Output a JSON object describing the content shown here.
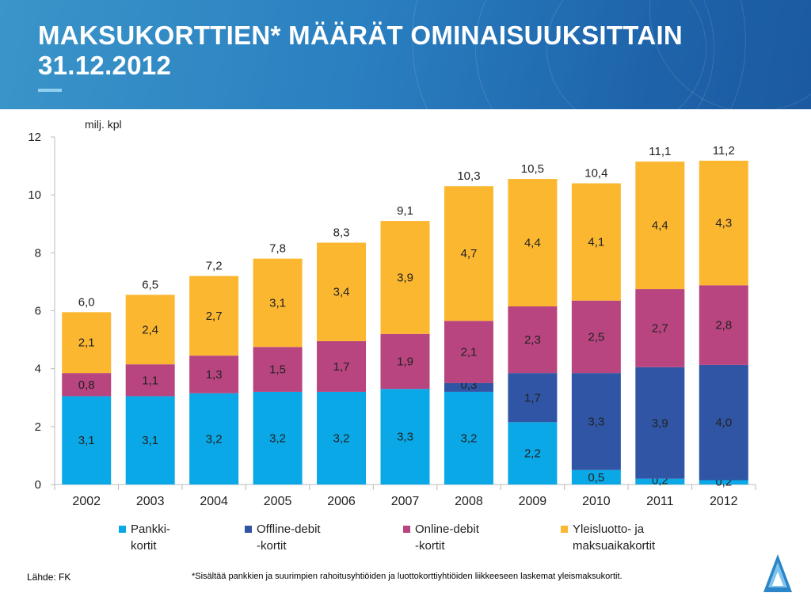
{
  "header": {
    "title_line1": "MAKSUKORTTIEN* MÄÄRÄT OMINAISUUKSITTAIN",
    "title_line2": "31.12.2012"
  },
  "footer": {
    "source": "Lähde: FK",
    "note": "*Sisältää pankkien ja suurimpien rahoitusyhtiöiden ja luottokorttiyhtiöiden liikkeeseen laskemat yleismaksukortit."
  },
  "colors": {
    "pankki": "#0aa8e6",
    "offline": "#2f55a4",
    "online": "#b8457f",
    "yleis": "#fcb731",
    "header": "#2a7fc0"
  },
  "chart_data": {
    "type": "bar",
    "stacked": true,
    "ylabel": "milj. kpl",
    "ylim": [
      0,
      12
    ],
    "yticks": [
      0,
      2,
      4,
      6,
      8,
      10,
      12
    ],
    "grid": false,
    "legend_position": "bottom",
    "categories": [
      "2002",
      "2003",
      "2004",
      "2005",
      "2006",
      "2007",
      "2008",
      "2009",
      "2010",
      "2011",
      "2012"
    ],
    "series": [
      {
        "name_line1": "Pankki-",
        "name_line2": "kortit",
        "name": "Pankki-kortit",
        "color_key": "pankki",
        "heights": [
          3.05,
          3.05,
          3.15,
          3.2,
          3.2,
          3.3,
          3.2,
          2.15,
          0.5,
          0.2,
          0.15
        ],
        "labels": [
          "3,1",
          "3,1",
          "3,2",
          "3,2",
          "3,2",
          "3,3",
          "3,2",
          "2,2",
          "0,5",
          "0,2",
          "0,2"
        ]
      },
      {
        "name_line1": "Offline-debit",
        "name_line2": "-kortit",
        "name": "Offline-debit-kortit",
        "color_key": "offline",
        "heights": [
          0,
          0,
          0,
          0,
          0,
          0,
          0.3,
          1.7,
          3.35,
          3.85,
          3.98
        ],
        "labels": [
          "",
          "",
          "",
          "",
          "",
          "",
          "0,3",
          "1,7",
          "3,3",
          "3,9",
          "4,0"
        ]
      },
      {
        "name_line1": "Online-debit",
        "name_line2": "-kortit",
        "name": "Online-debit-kortit",
        "color_key": "online",
        "heights": [
          0.8,
          1.1,
          1.3,
          1.55,
          1.75,
          1.9,
          2.15,
          2.3,
          2.5,
          2.7,
          2.75
        ],
        "labels": [
          "0,8",
          "1,1",
          "1,3",
          "1,5",
          "1,7",
          "1,9",
          "2,1",
          "2,3",
          "2,5",
          "2,7",
          "2,8"
        ]
      },
      {
        "name_line1": "Yleisluotto- ja",
        "name_line2": "maksuaikakortit",
        "name": "Yleisluotto- ja maksuaikakortit",
        "color_key": "yleis",
        "heights": [
          2.1,
          2.4,
          2.75,
          3.05,
          3.4,
          3.9,
          4.65,
          4.4,
          4.05,
          4.4,
          4.3
        ],
        "labels": [
          "2,1",
          "2,4",
          "2,7",
          "3,1",
          "3,4",
          "3,9",
          "4,7",
          "4,4",
          "4,1",
          "4,4",
          "4,3"
        ]
      }
    ],
    "totals": [
      "6,0",
      "6,5",
      "7,2",
      "7,8",
      "8,3",
      "9,1",
      "10,3",
      "10,5",
      "10,4",
      "11,1",
      "11,2"
    ]
  }
}
